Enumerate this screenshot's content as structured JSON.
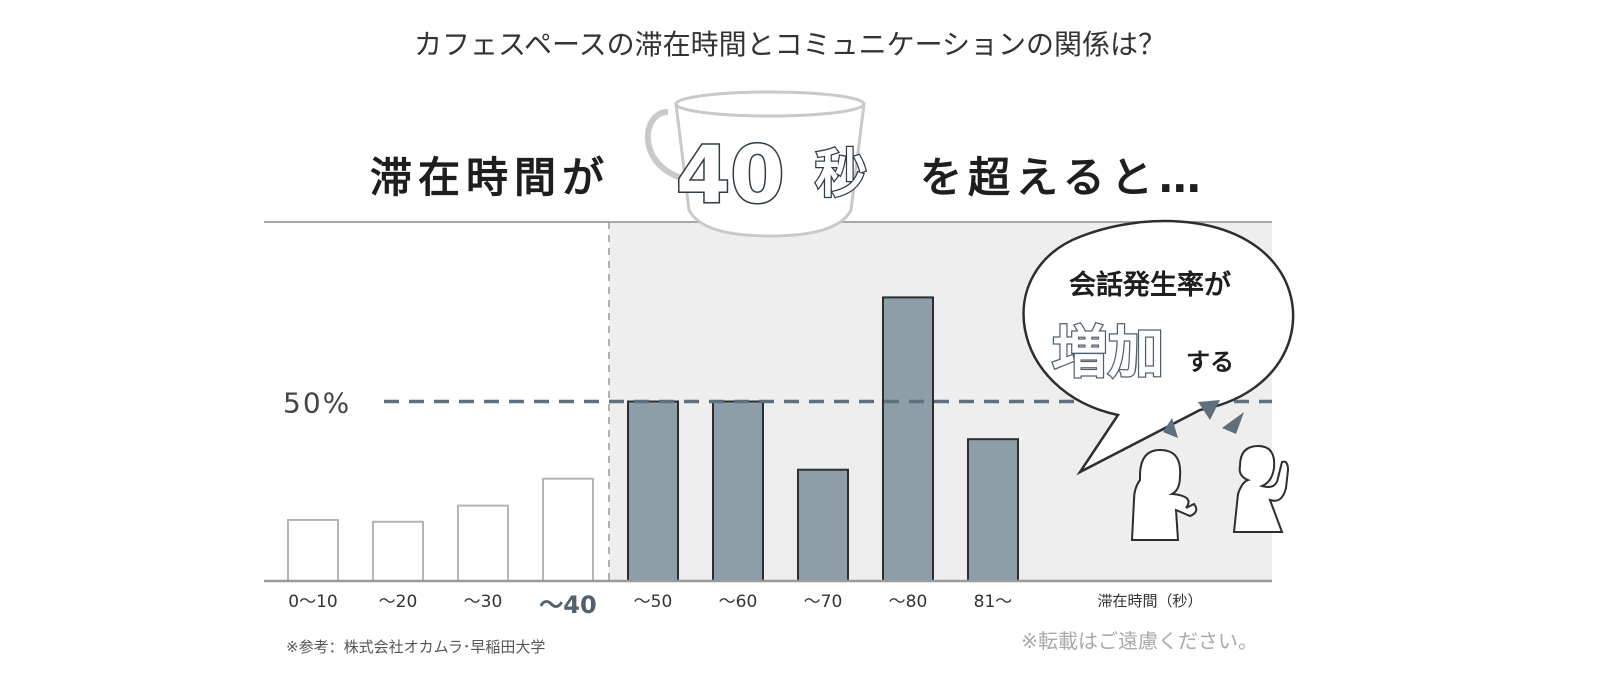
{
  "title": "カフェスペースの滞在時間とコミュニケーションの関係は？",
  "headline": {
    "prefix": "滞在時間が",
    "number": "40",
    "unit": "秒",
    "suffix": "を超えると…"
  },
  "bubble": {
    "line1": "会話発生率が",
    "emphasis": "増加",
    "tail": "する"
  },
  "footnote_left": "※参考：株式会社オカムラ･早稲田大学",
  "footnote_right": "※転載はご遠慮ください。",
  "colors": {
    "bar_fill": "#8e9ea9",
    "bar_stroke": "#2e2e2e",
    "reference_line": "#5e707d",
    "highlight_bg": "#eeeeee",
    "accent": "#4f6170"
  },
  "icons": [
    "coffee-cup-icon",
    "people-talking-icon"
  ],
  "chart_data": {
    "type": "bar",
    "categories": [
      "0～10",
      "～20",
      "～30",
      "～40",
      "～50",
      "～60",
      "～70",
      "～80",
      "81～"
    ],
    "values": [
      17,
      16.5,
      21,
      28.5,
      50,
      50,
      31,
      79,
      39.5
    ],
    "highlighted_from_index": 4,
    "emphasized_category_index": 3,
    "reference_line": {
      "value": 50,
      "label": "50%"
    },
    "xlabel": "滞在時間（秒）",
    "ylabel": "",
    "ylim": [
      0,
      100
    ],
    "grid": false,
    "legend": "none"
  }
}
